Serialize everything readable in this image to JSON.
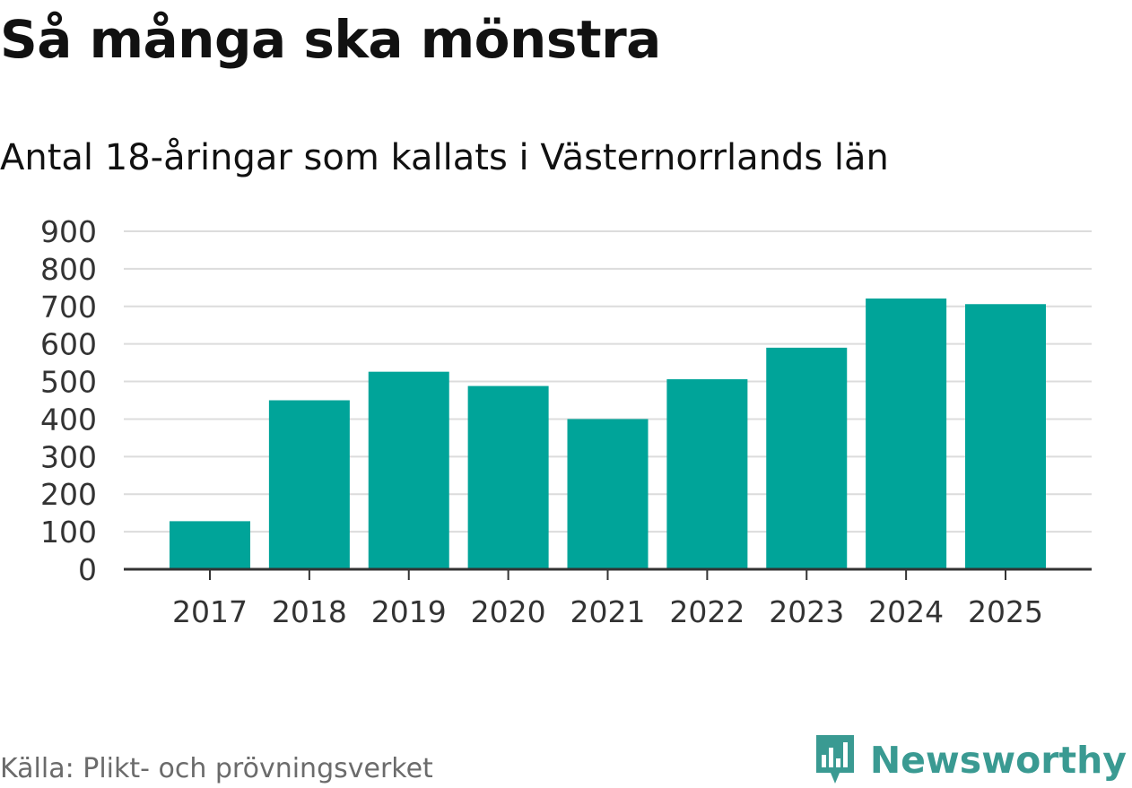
{
  "chart_data": {
    "type": "bar",
    "title": "Så många ska mönstra",
    "subtitle": "Antal 18-åringar som kallats i Västernorrlands län",
    "xlabel": "",
    "ylabel": "",
    "categories": [
      "2017",
      "2018",
      "2019",
      "2020",
      "2021",
      "2022",
      "2023",
      "2024",
      "2025"
    ],
    "values": [
      128,
      450,
      526,
      488,
      400,
      506,
      590,
      721,
      706
    ],
    "ylim": [
      0,
      900
    ],
    "yticks": [
      0,
      100,
      200,
      300,
      400,
      500,
      600,
      700,
      800,
      900
    ],
    "bar_color": "#00a499",
    "grid": true
  },
  "footer": {
    "source": "Källa: Plikt- och prövningsverket",
    "brand": "Newsworthy"
  },
  "colors": {
    "bar": "#00a499",
    "brand": "#3a9a92",
    "grid": "#dcdcdc",
    "axis": "#333333"
  }
}
